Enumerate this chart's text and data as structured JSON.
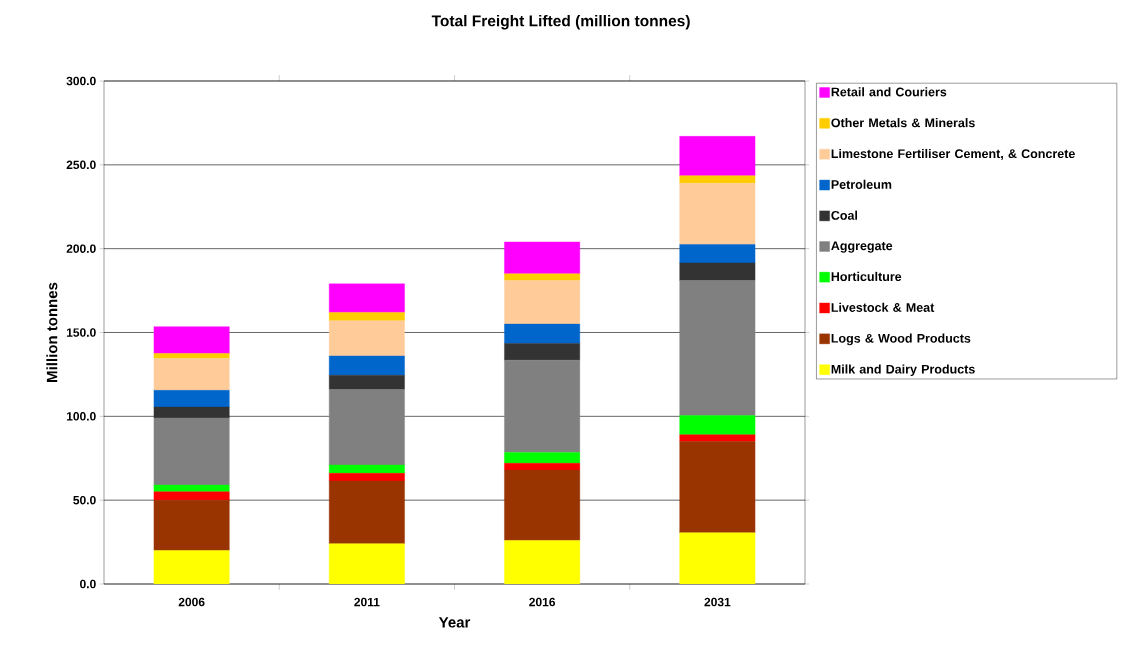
{
  "chart_data": {
    "type": "bar",
    "stacked": true,
    "title": "Total Freight Lifted (million tonnes)",
    "xlabel": "Year",
    "ylabel": "Million tonnes",
    "categories": [
      "2006",
      "2011",
      "2016",
      "2031"
    ],
    "series": [
      {
        "name": "Milk and Dairy Products",
        "color": "#ffff00",
        "values": [
          20,
          24,
          26,
          30.5
        ]
      },
      {
        "name": "Logs & Wood Products",
        "color": "#993300",
        "values": [
          30,
          37.5,
          42,
          54.5
        ]
      },
      {
        "name": "Livestock & Meat",
        "color": "#ff0000",
        "values": [
          5,
          4.5,
          4,
          4
        ]
      },
      {
        "name": "Horticulture",
        "color": "#00ff00",
        "values": [
          4,
          5,
          6.5,
          11.5
        ]
      },
      {
        "name": "Aggregate",
        "color": "#808080",
        "values": [
          40,
          45,
          55,
          80.5
        ]
      },
      {
        "name": "Coal",
        "color": "#333333",
        "values": [
          6.5,
          8.5,
          10,
          10.5
        ]
      },
      {
        "name": "Petroleum",
        "color": "#0066cc",
        "values": [
          10,
          11.5,
          11.5,
          11
        ]
      },
      {
        "name": "Limestone Fertiliser Cement, & Concrete",
        "color": "#ffcc99",
        "values": [
          19,
          21,
          26,
          36.5
        ]
      },
      {
        "name": "Other Metals & Minerals",
        "color": "#ffcc00",
        "values": [
          3,
          5,
          4,
          4.5
        ]
      },
      {
        "name": "Retail and Couriers",
        "color": "#ff00ff",
        "values": [
          16,
          17,
          19,
          23.5
        ]
      }
    ],
    "ylim": [
      0,
      300
    ],
    "yticks": [
      {
        "value": 0,
        "label": "0.0"
      },
      {
        "value": 50,
        "label": "50.0"
      },
      {
        "value": 100,
        "label": "100.0"
      },
      {
        "value": 150,
        "label": "150.0"
      },
      {
        "value": 200,
        "label": "200.0"
      },
      {
        "value": 250,
        "label": "250.0"
      },
      {
        "value": 300,
        "label": "300.0"
      }
    ],
    "grid": "y",
    "legend": "right"
  }
}
